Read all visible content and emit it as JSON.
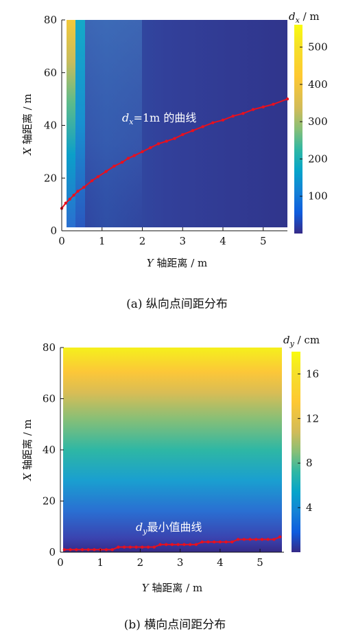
{
  "chart_data": [
    {
      "type": "heatmap",
      "caption": "(a)  纵向点间距分布",
      "xlabel_var": "Y",
      "xlabel_rest": " 轴距离 / m",
      "ylabel_var": "X",
      "ylabel_rest": " 轴距离 / m",
      "xlim": [
        0,
        5.6
      ],
      "ylim": [
        0,
        80
      ],
      "x_ticks": [
        0,
        1,
        2,
        3,
        4,
        5
      ],
      "y_ticks": [
        0,
        20,
        40,
        60,
        80
      ],
      "colorbar": {
        "label_var": "d",
        "label_sub": "x",
        "label_rest": " / m",
        "range": [
          0,
          560
        ],
        "ticks": [
          100,
          200,
          300,
          400,
          500
        ]
      },
      "annotation": {
        "var": "d",
        "sub": "x",
        "rest": "=1m 的曲线"
      },
      "curve_color": "#e8101e",
      "series": [
        {
          "x": [
            0.0,
            0.1,
            0.2,
            0.3,
            0.4,
            0.55,
            0.75,
            0.9,
            1.1,
            1.3,
            1.5,
            1.65,
            1.8,
            2.0,
            2.2,
            2.4,
            2.6,
            2.8,
            3.0,
            3.25,
            3.5,
            3.75,
            4.0,
            4.25,
            4.5,
            4.75,
            5.0,
            5.25,
            5.6
          ],
          "y": [
            8.5,
            10.5,
            12,
            13.5,
            15,
            16.5,
            19,
            20.5,
            22.5,
            24.5,
            26,
            27.5,
            28.5,
            30,
            31.5,
            33,
            34,
            35,
            36.5,
            38,
            39.5,
            41,
            42,
            43.5,
            44.5,
            46,
            47,
            48,
            50
          ]
        }
      ]
    },
    {
      "type": "heatmap",
      "caption": "(b)  横向点间距分布",
      "xlabel_var": "Y",
      "xlabel_rest": " 轴距离 / m",
      "ylabel_var": "X",
      "ylabel_rest": " 轴距离 / m",
      "xlim": [
        0,
        5.6
      ],
      "ylim": [
        0,
        80
      ],
      "x_ticks": [
        0,
        1,
        2,
        3,
        4,
        5
      ],
      "y_ticks": [
        0,
        20,
        40,
        60,
        80
      ],
      "colorbar": {
        "label_var": "d",
        "label_sub": "y",
        "label_rest": " / cm",
        "range": [
          0,
          18
        ],
        "ticks": [
          4,
          8,
          12,
          16
        ]
      },
      "annotation": {
        "var": "d",
        "sub": "y",
        "rest": "最小值曲线"
      },
      "curve_color": "#e8101e",
      "series": [
        {
          "x": [
            0.1,
            0.25,
            0.4,
            0.55,
            0.7,
            0.85,
            1.0,
            1.15,
            1.3,
            1.45,
            1.6,
            1.75,
            1.9,
            2.05,
            2.2,
            2.35,
            2.5,
            2.65,
            2.8,
            2.95,
            3.1,
            3.25,
            3.4,
            3.55,
            3.7,
            3.85,
            4.0,
            4.15,
            4.3,
            4.45,
            4.6,
            4.75,
            4.9,
            5.05,
            5.2,
            5.35,
            5.5
          ],
          "y": [
            1,
            1,
            1,
            1,
            1,
            1,
            1,
            1,
            1,
            2,
            2,
            2,
            2,
            2,
            2,
            2,
            3,
            3,
            3,
            3,
            3,
            3,
            3,
            4,
            4,
            4,
            4,
            4,
            4,
            5,
            5,
            5,
            5,
            5,
            5,
            5,
            6
          ]
        }
      ]
    }
  ]
}
